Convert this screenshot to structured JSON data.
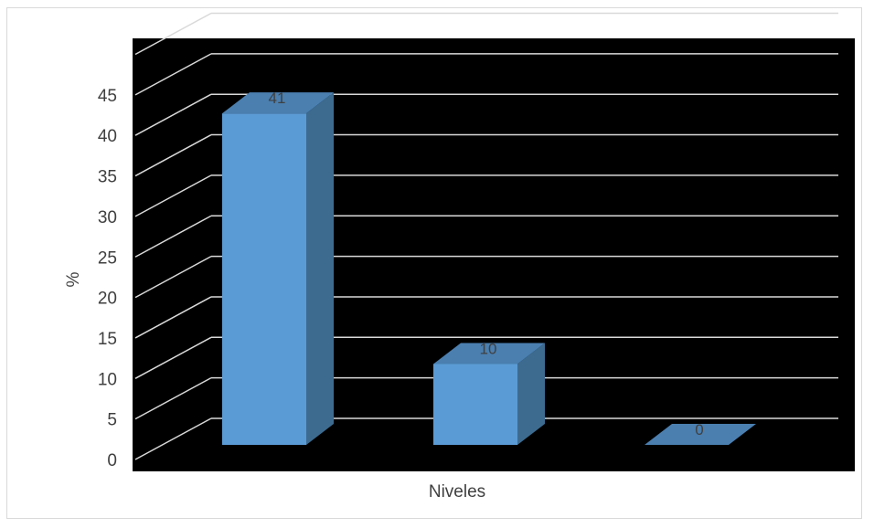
{
  "chart_data": {
    "type": "bar",
    "style": "3d-column",
    "categories": [
      "",
      "",
      ""
    ],
    "values": [
      41,
      10,
      0
    ],
    "data_labels": [
      "41",
      "10",
      "0"
    ],
    "xlabel": "Niveles",
    "ylabel": "%",
    "ylim": [
      0,
      50
    ],
    "yticks": [
      0,
      5,
      10,
      15,
      20,
      25,
      30,
      35,
      40,
      45
    ],
    "grid": true,
    "legend": "none",
    "colors": {
      "bar_front": "#5b9bd5",
      "bar_side": "#3d6b8f",
      "bar_top": "#4a7fb0",
      "plot_background": "#000000",
      "gridline": "#d9d9d9",
      "text": "#404040"
    }
  }
}
